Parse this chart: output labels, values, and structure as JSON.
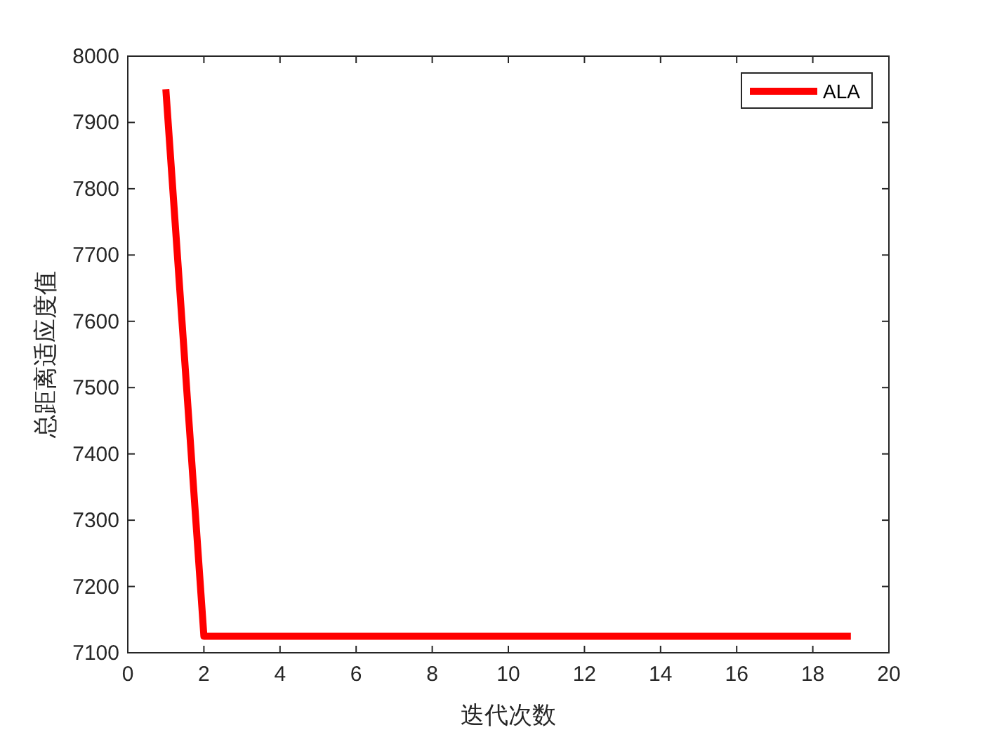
{
  "chart_data": {
    "type": "line",
    "xlabel": "迭代次数",
    "ylabel": "总距离适应度值",
    "x": [
      1,
      2,
      3,
      4,
      5,
      6,
      7,
      8,
      9,
      10,
      11,
      12,
      13,
      14,
      15,
      16,
      17,
      18,
      19
    ],
    "series": [
      {
        "name": "ALA",
        "color": "#ff0000",
        "values": [
          7950,
          7125,
          7125,
          7125,
          7125,
          7125,
          7125,
          7125,
          7125,
          7125,
          7125,
          7125,
          7125,
          7125,
          7125,
          7125,
          7125,
          7125,
          7125
        ]
      }
    ],
    "xlim": [
      0,
      20
    ],
    "xticks": [
      0,
      2,
      4,
      6,
      8,
      10,
      12,
      14,
      16,
      18,
      20
    ],
    "ylim": [
      7100,
      8000
    ],
    "yticks": [
      7100,
      7200,
      7300,
      7400,
      7500,
      7600,
      7700,
      7800,
      7900,
      8000
    ],
    "grid": false,
    "legend": "top right",
    "marker": "none",
    "line_style": "solid"
  }
}
